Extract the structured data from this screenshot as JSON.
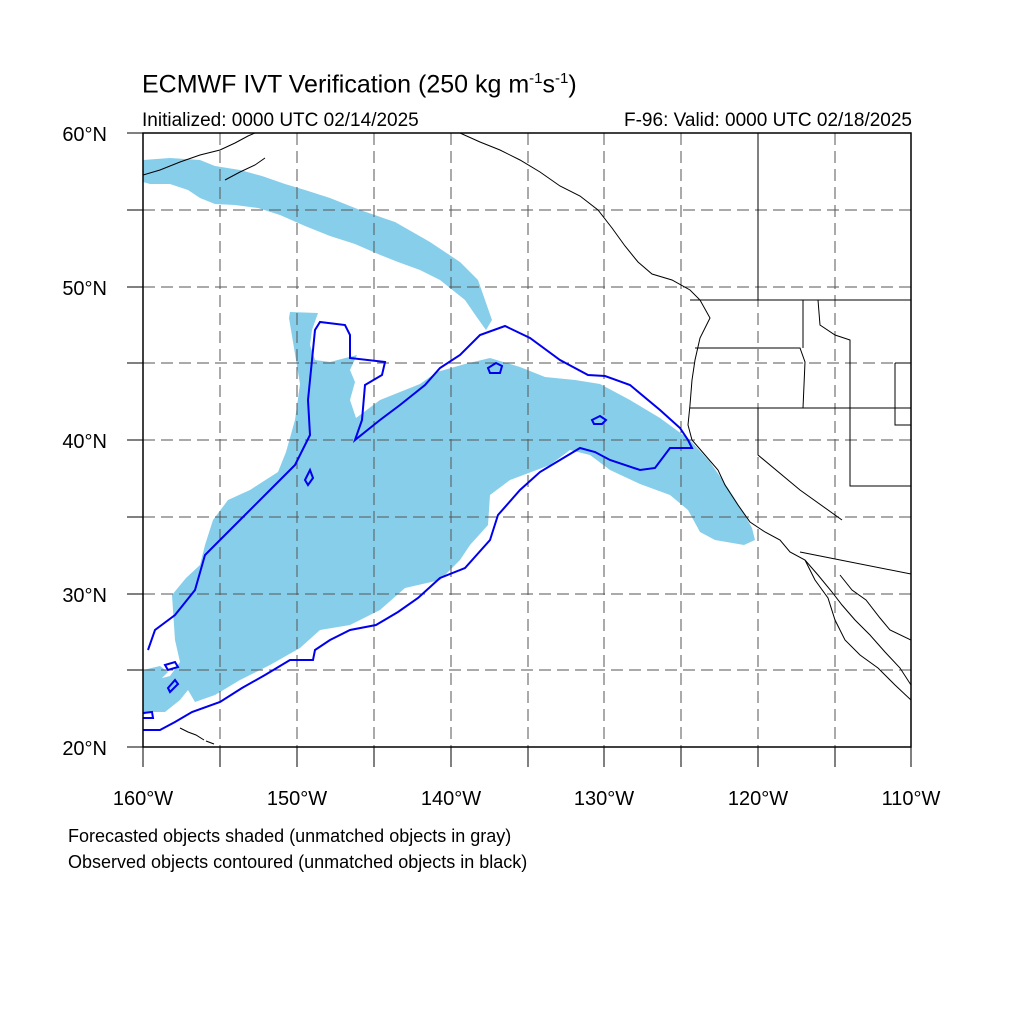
{
  "header": {
    "title_main": "ECMWF IVT Verification (250 kg m",
    "title_exp1": "-1",
    "title_mid": "s",
    "title_exp2": "-1",
    "title_end": ")",
    "initialized": "Initialized: 0000 UTC 02/14/2025",
    "valid": "F-96: Valid: 0000 UTC 02/18/2025"
  },
  "axes": {
    "lat_labels": [
      "60°N",
      "50°N",
      "40°N",
      "30°N",
      "20°N"
    ],
    "lon_labels": [
      "160°W",
      "150°W",
      "140°W",
      "130°W",
      "120°W",
      "110°W"
    ],
    "lat_range": [
      20,
      60
    ],
    "lon_range": [
      -160,
      -110
    ],
    "grid": "dashed every 5 degrees"
  },
  "legend_notes": {
    "line1": "Forecasted objects shaded (unmatched objects in gray)",
    "line2": "Observed objects contoured (unmatched objects in black)"
  },
  "colors": {
    "forecast_fill": "#87ceeb",
    "observed_contour": "#0000ee",
    "coastline": "#000000",
    "grid": "#555555"
  }
}
